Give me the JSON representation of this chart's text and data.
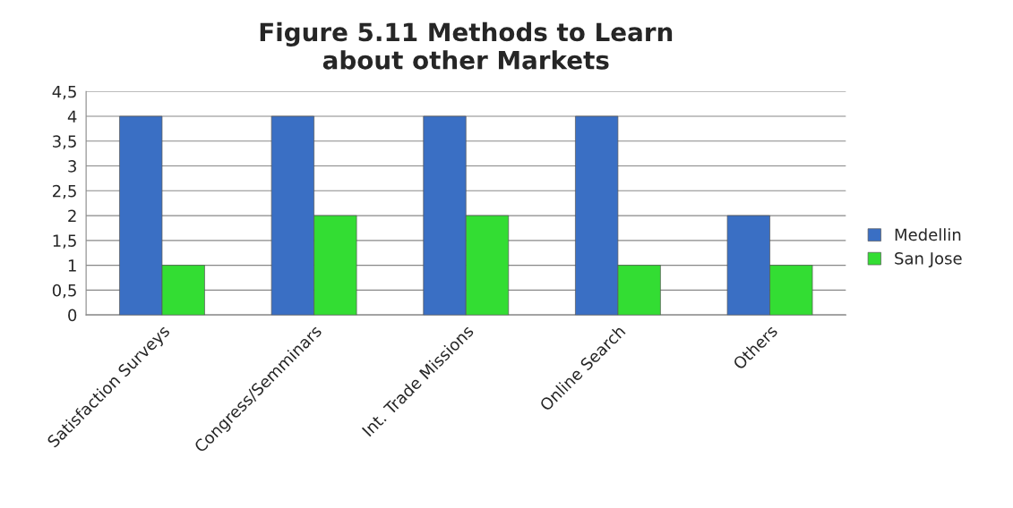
{
  "chart_data": {
    "type": "bar",
    "title": "Figure 5.11 Methods to Learn\nabout other Markets",
    "categories": [
      "Satisfaction Surveys",
      "Congress/Semminars",
      "Int. Trade Missions",
      "Online Search",
      "Others"
    ],
    "series": [
      {
        "name": "Medellin",
        "color": "#3a6fc4",
        "values": [
          4,
          4,
          4,
          4,
          2
        ]
      },
      {
        "name": "San Jose",
        "color": "#33dd33",
        "values": [
          1,
          2,
          2,
          1,
          1
        ]
      }
    ],
    "ylim": [
      0,
      4.5
    ],
    "yticks": [
      0,
      {
        "value": 0.5,
        "label": "0,5"
      },
      1,
      {
        "value": 1.5,
        "label": "1,5"
      },
      2,
      {
        "value": 2.5,
        "label": "2,5"
      },
      3,
      {
        "value": 3.5,
        "label": "3,5"
      },
      4,
      {
        "value": 4.5,
        "label": "4,5"
      }
    ],
    "grid": "y",
    "legend": "right"
  }
}
